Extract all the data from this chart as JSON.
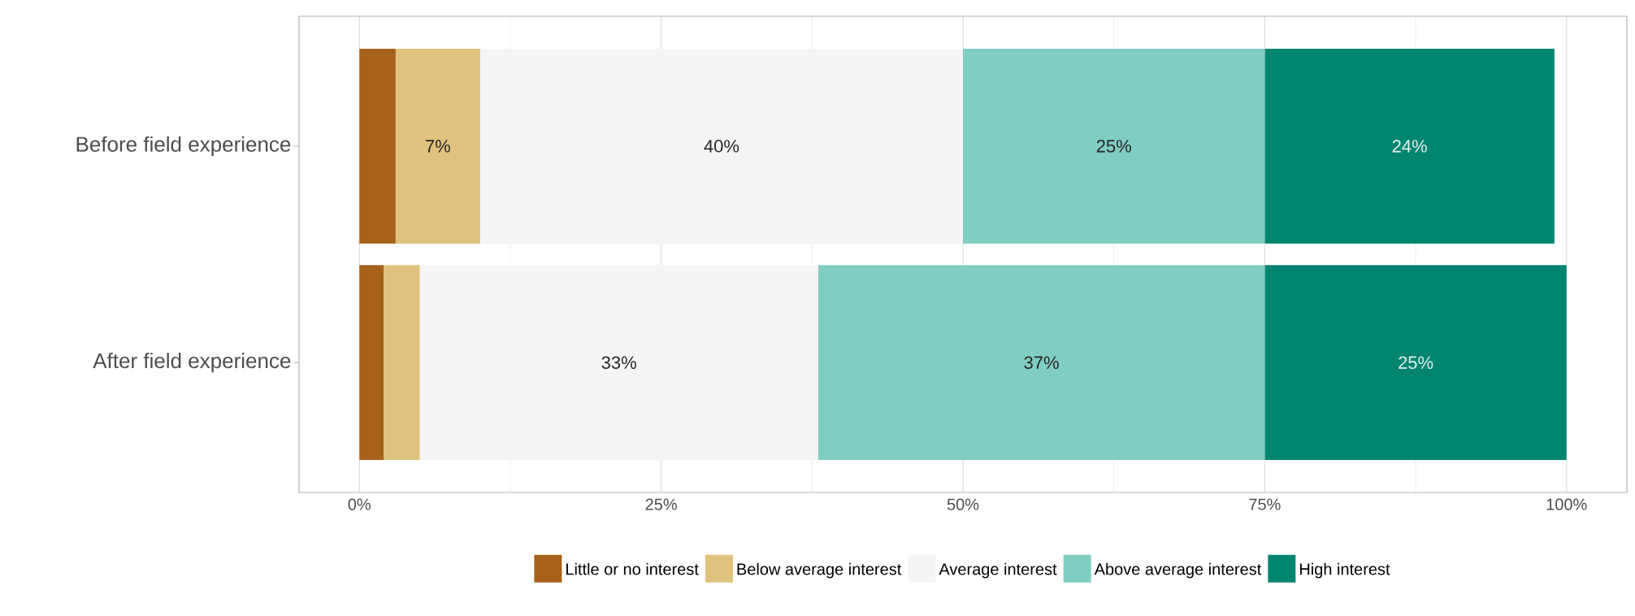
{
  "chart_data": {
    "type": "bar",
    "orientation": "horizontal",
    "stacked": true,
    "categories": [
      "Before field experience",
      "After field experience"
    ],
    "series": [
      {
        "name": "Little or no interest",
        "color": "#a6611a",
        "values": [
          3,
          2
        ],
        "value_labels": [
          null,
          null
        ]
      },
      {
        "name": "Below average interest",
        "color": "#dfc27d",
        "values": [
          7,
          3
        ],
        "value_labels": [
          "7%",
          null
        ]
      },
      {
        "name": "Average interest",
        "color": "#f5f5f5",
        "values": [
          40,
          33
        ],
        "value_labels": [
          "40%",
          "33%"
        ]
      },
      {
        "name": "Above average interest",
        "color": "#80cdc1",
        "values": [
          25,
          37
        ],
        "value_labels": [
          "25%",
          "37%"
        ]
      },
      {
        "name": "High interest",
        "color": "#018571",
        "values": [
          24,
          25
        ],
        "value_labels": [
          "24%",
          "25%"
        ]
      }
    ],
    "xlim": [
      -5,
      105
    ],
    "xticks": [
      {
        "value": 0,
        "label": "0%"
      },
      {
        "value": 25,
        "label": "25%"
      },
      {
        "value": 50,
        "label": "50%"
      },
      {
        "value": 75,
        "label": "75%"
      },
      {
        "value": 100,
        "label": "100%"
      }
    ],
    "grid": "x",
    "legend": "bottom"
  }
}
